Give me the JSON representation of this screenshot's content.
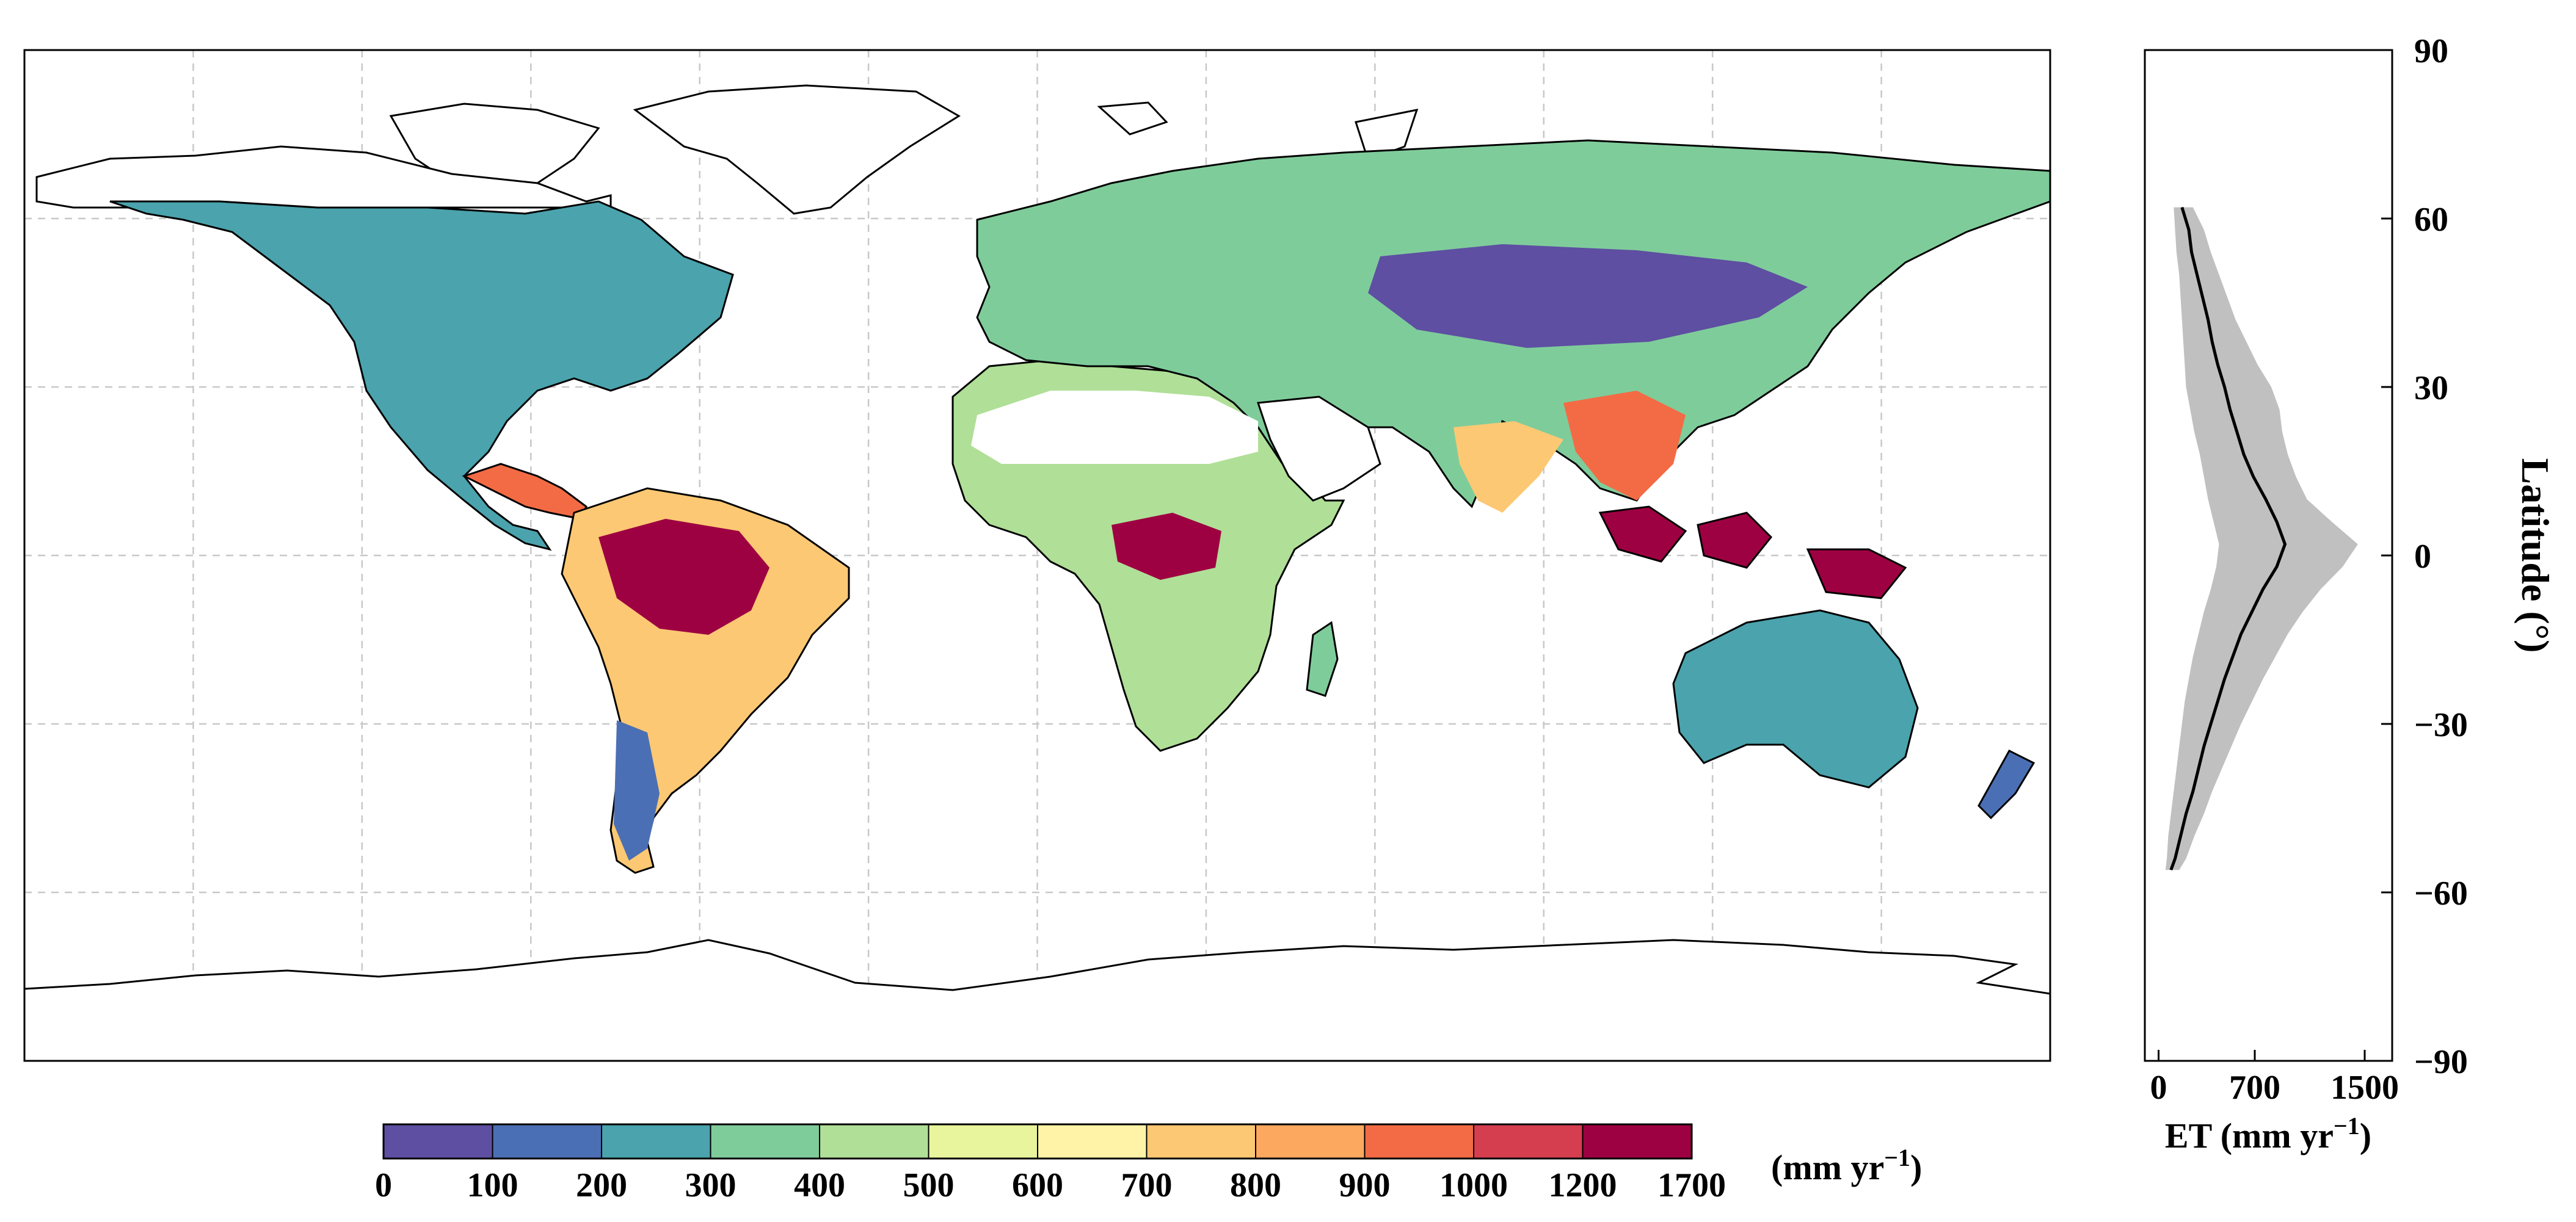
{
  "map": {
    "type": "global_raster_map",
    "projection": "equirectangular",
    "extent": {
      "lon": [
        -180,
        180
      ],
      "lat": [
        -90,
        90
      ]
    },
    "gridlines": {
      "shown": true,
      "style": "dashed",
      "lon_step_deg": 30,
      "lat_step_deg": 30
    },
    "variable_unit_label": "(mm yr",
    "variable_unit_exp": "−1",
    "variable_unit_close": ")",
    "regions": [
      {
        "name": "Amazon",
        "class_index": 11
      },
      {
        "name": "Congo Basin",
        "class_index": 11
      },
      {
        "name": "Maritime Continent",
        "class_index": 11
      },
      {
        "name": "Sahara",
        "class_index": null
      },
      {
        "name": "Arabian Peninsula",
        "class_index": null
      },
      {
        "name": "Central Asia",
        "class_index": 0
      },
      {
        "name": "Greenland",
        "class_index": null
      },
      {
        "name": "Antarctica",
        "class_index": null
      }
    ]
  },
  "colorbar": {
    "ticks": [
      "0",
      "100",
      "200",
      "300",
      "400",
      "500",
      "600",
      "700",
      "800",
      "900",
      "1000",
      "1200",
      "1700"
    ],
    "colors": [
      "#5e4fa2",
      "#4b6fb4",
      "#4aa3ad",
      "#7fcc9b",
      "#b0df97",
      "#e8f59c",
      "#fff3a8",
      "#fdc873",
      "#fca85f",
      "#f36b45",
      "#d53e4f",
      "#9e0142"
    ],
    "unit_prefix": "(mm yr",
    "unit_exp": "−1",
    "unit_suffix": ")"
  },
  "chart_data": {
    "type": "line",
    "orientation": "vertical",
    "xlabel_prefix": "ET (mm yr",
    "xlabel_exp": "−1",
    "xlabel_suffix": ")",
    "ylabel": "Latitude (°)",
    "xlim": [
      -100,
      1700
    ],
    "ylim": [
      -90,
      90
    ],
    "xticks": [
      0,
      700,
      1500
    ],
    "xtick_labels": [
      "0",
      "700",
      "1500"
    ],
    "yticks": [
      -90,
      -60,
      -30,
      0,
      30,
      60,
      90
    ],
    "ytick_labels": [
      "−90",
      "−60",
      "−30",
      "0",
      "30",
      "60",
      "90"
    ],
    "series": [
      {
        "role": "mean",
        "color": "#000000",
        "lat": [
          62,
          58,
          54,
          50,
          46,
          42,
          38,
          34,
          30,
          26,
          22,
          18,
          14,
          10,
          6,
          2,
          -2,
          -6,
          -10,
          -14,
          -18,
          -22,
          -26,
          -30,
          -34,
          -38,
          -42,
          -46,
          -50,
          -54,
          -56
        ],
        "et": [
          170,
          220,
          240,
          280,
          320,
          360,
          390,
          430,
          480,
          520,
          570,
          620,
          690,
          780,
          860,
          920,
          860,
          760,
          680,
          600,
          540,
          480,
          430,
          380,
          330,
          290,
          250,
          200,
          160,
          120,
          90
        ]
      },
      {
        "role": "range_lower",
        "color": "#c0c0c0",
        "lat": [
          62,
          58,
          54,
          50,
          46,
          42,
          38,
          34,
          30,
          26,
          22,
          18,
          14,
          10,
          6,
          2,
          -2,
          -6,
          -10,
          -14,
          -18,
          -22,
          -26,
          -30,
          -34,
          -38,
          -42,
          -46,
          -50,
          -54,
          -56
        ],
        "et": [
          110,
          120,
          130,
          150,
          160,
          170,
          180,
          190,
          200,
          230,
          260,
          300,
          330,
          360,
          400,
          440,
          420,
          380,
          330,
          290,
          250,
          220,
          190,
          170,
          150,
          130,
          110,
          90,
          70,
          60,
          50
        ]
      },
      {
        "role": "range_upper",
        "color": "#c0c0c0",
        "lat": [
          62,
          58,
          54,
          50,
          46,
          42,
          38,
          34,
          30,
          26,
          22,
          18,
          14,
          10,
          6,
          2,
          -2,
          -6,
          -10,
          -14,
          -18,
          -22,
          -26,
          -30,
          -34,
          -38,
          -42,
          -46,
          -50,
          -54,
          -56
        ],
        "et": [
          250,
          330,
          380,
          440,
          500,
          560,
          640,
          720,
          820,
          880,
          900,
          940,
          1000,
          1080,
          1260,
          1450,
          1340,
          1180,
          1050,
          940,
          850,
          760,
          680,
          600,
          530,
          460,
          390,
          330,
          260,
          200,
          150
        ]
      }
    ]
  }
}
